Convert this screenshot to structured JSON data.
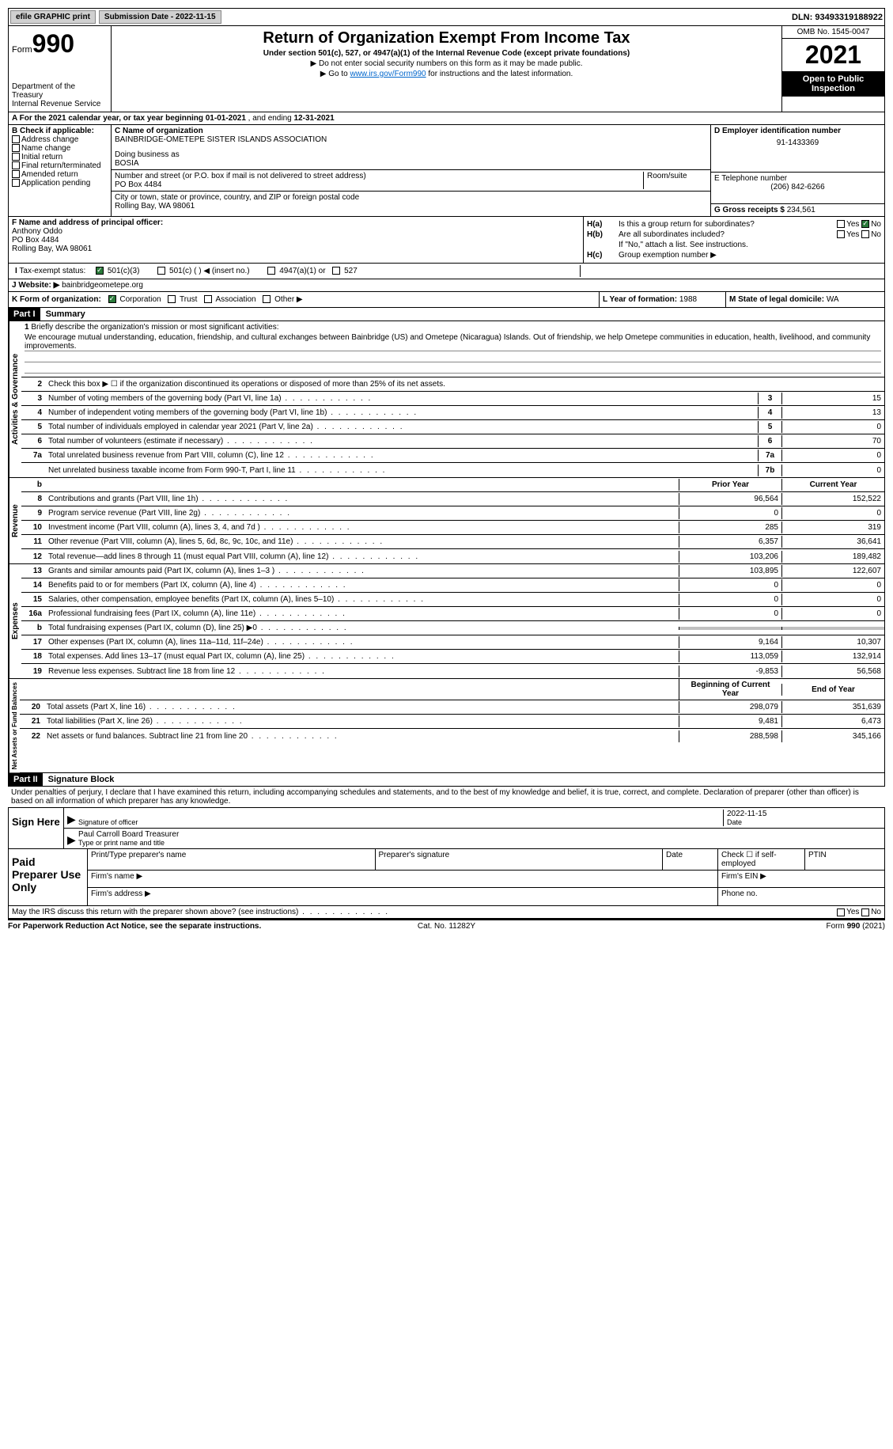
{
  "topbar": {
    "efile": "efile GRAPHIC print",
    "submission_label": "Submission Date - ",
    "submission_date": "2022-11-15",
    "dln_label": "DLN: ",
    "dln": "93493319188922"
  },
  "header": {
    "form_label": "Form",
    "form_number": "990",
    "dept": "Department of the Treasury\nInternal Revenue Service",
    "title": "Return of Organization Exempt From Income Tax",
    "subtitle": "Under section 501(c), 527, or 4947(a)(1) of the Internal Revenue Code (except private foundations)",
    "note1": "▶ Do not enter social security numbers on this form as it may be made public.",
    "note2_pre": "▶ Go to ",
    "note2_link": "www.irs.gov/Form990",
    "note2_post": " for instructions and the latest information.",
    "omb": "OMB No. 1545-0047",
    "year": "2021",
    "inspect": "Open to Public Inspection"
  },
  "row_a": {
    "text": "A For the 2021 calendar year, or tax year beginning ",
    "begin": "01-01-2021",
    "mid": "  , and ending ",
    "end": "12-31-2021"
  },
  "col_b": {
    "label": "B Check if applicable:",
    "items": [
      "Address change",
      "Name change",
      "Initial return",
      "Final return/terminated",
      "Amended return",
      "Application pending"
    ]
  },
  "col_c": {
    "name_label": "C Name of organization",
    "name": "BAINBRIDGE-OMETEPE SISTER ISLANDS ASSOCIATION",
    "dba_label": "Doing business as",
    "dba": "BOSIA",
    "addr_label": "Number and street (or P.O. box if mail is not delivered to street address)",
    "addr": "PO Box 4484",
    "room_label": "Room/suite",
    "city_label": "City or town, state or province, country, and ZIP or foreign postal code",
    "city": "Rolling Bay, WA  98061"
  },
  "col_d": {
    "ein_label": "D Employer identification number",
    "ein": "91-1433369",
    "phone_label": "E Telephone number",
    "phone": "(206) 842-6266",
    "gross_label": "G Gross receipts $ ",
    "gross": "234,561"
  },
  "col_f": {
    "label": "F Name and address of principal officer:",
    "name": "Anthony Oddo",
    "addr1": "PO Box 4484",
    "addr2": "Rolling Bay, WA  98061"
  },
  "col_h": {
    "ha_label": "H(a)",
    "ha_text": "Is this a group return for subordinates?",
    "hb_label": "H(b)",
    "hb_text": "Are all subordinates included?",
    "hb_note": "If \"No,\" attach a list. See instructions.",
    "hc_label": "H(c)",
    "hc_text": "Group exemption number ▶",
    "yes": "Yes",
    "no": "No"
  },
  "row_i": {
    "label": "I",
    "text": "Tax-exempt status:",
    "opts": [
      "501(c)(3)",
      "501(c) (  ) ◀ (insert no.)",
      "4947(a)(1) or",
      "527"
    ]
  },
  "row_j": {
    "label": "J",
    "text": "Website: ▶",
    "value": "bainbridgeometepe.org"
  },
  "row_k": {
    "label": "K Form of organization:",
    "opts": [
      "Corporation",
      "Trust",
      "Association",
      "Other ▶"
    ],
    "l_label": "L Year of formation: ",
    "l_value": "1988",
    "m_label": "M State of legal domicile: ",
    "m_value": "WA"
  },
  "part1": {
    "header": "Part I",
    "title": "Summary",
    "tab_activities": "Activities & Governance",
    "tab_revenue": "Revenue",
    "tab_expenses": "Expenses",
    "tab_netassets": "Net Assets or Fund Balances",
    "q1_label": "1",
    "q1_text": "Briefly describe the organization's mission or most significant activities:",
    "q1_mission": "We encourage mutual understanding, education, friendship, and cultural exchanges between Bainbridge (US) and Ometepe (Nicaragua) Islands. Out of friendship, we help Ometepe communities in education, health, livelihood, and community improvements.",
    "q2_label": "2",
    "q2_text": "Check this box ▶ ☐ if the organization discontinued its operations or disposed of more than 25% of its net assets.",
    "prior_year": "Prior Year",
    "current_year": "Current Year",
    "begin_year": "Beginning of Current Year",
    "end_year": "End of Year",
    "rows_gov": [
      {
        "n": "3",
        "t": "Number of voting members of the governing body (Part VI, line 1a)",
        "box": "3",
        "v": "15"
      },
      {
        "n": "4",
        "t": "Number of independent voting members of the governing body (Part VI, line 1b)",
        "box": "4",
        "v": "13"
      },
      {
        "n": "5",
        "t": "Total number of individuals employed in calendar year 2021 (Part V, line 2a)",
        "box": "5",
        "v": "0"
      },
      {
        "n": "6",
        "t": "Total number of volunteers (estimate if necessary)",
        "box": "6",
        "v": "70"
      },
      {
        "n": "7a",
        "t": "Total unrelated business revenue from Part VIII, column (C), line 12",
        "box": "7a",
        "v": "0"
      },
      {
        "n": "",
        "t": "Net unrelated business taxable income from Form 990-T, Part I, line 11",
        "box": "7b",
        "v": "0"
      }
    ],
    "b_label": "b",
    "rows_rev": [
      {
        "n": "8",
        "t": "Contributions and grants (Part VIII, line 1h)",
        "py": "96,564",
        "cy": "152,522"
      },
      {
        "n": "9",
        "t": "Program service revenue (Part VIII, line 2g)",
        "py": "0",
        "cy": "0"
      },
      {
        "n": "10",
        "t": "Investment income (Part VIII, column (A), lines 3, 4, and 7d )",
        "py": "285",
        "cy": "319"
      },
      {
        "n": "11",
        "t": "Other revenue (Part VIII, column (A), lines 5, 6d, 8c, 9c, 10c, and 11e)",
        "py": "6,357",
        "cy": "36,641"
      },
      {
        "n": "12",
        "t": "Total revenue—add lines 8 through 11 (must equal Part VIII, column (A), line 12)",
        "py": "103,206",
        "cy": "189,482"
      }
    ],
    "rows_exp": [
      {
        "n": "13",
        "t": "Grants and similar amounts paid (Part IX, column (A), lines 1–3 )",
        "py": "103,895",
        "cy": "122,607"
      },
      {
        "n": "14",
        "t": "Benefits paid to or for members (Part IX, column (A), line 4)",
        "py": "0",
        "cy": "0"
      },
      {
        "n": "15",
        "t": "Salaries, other compensation, employee benefits (Part IX, column (A), lines 5–10)",
        "py": "0",
        "cy": "0"
      },
      {
        "n": "16a",
        "t": "Professional fundraising fees (Part IX, column (A), line 11e)",
        "py": "0",
        "cy": "0"
      },
      {
        "n": "b",
        "t": "Total fundraising expenses (Part IX, column (D), line 25) ▶0",
        "py": "",
        "cy": "",
        "shaded": true
      },
      {
        "n": "17",
        "t": "Other expenses (Part IX, column (A), lines 11a–11d, 11f–24e)",
        "py": "9,164",
        "cy": "10,307"
      },
      {
        "n": "18",
        "t": "Total expenses. Add lines 13–17 (must equal Part IX, column (A), line 25)",
        "py": "113,059",
        "cy": "132,914"
      },
      {
        "n": "19",
        "t": "Revenue less expenses. Subtract line 18 from line 12",
        "py": "-9,853",
        "cy": "56,568"
      }
    ],
    "rows_net": [
      {
        "n": "20",
        "t": "Total assets (Part X, line 16)",
        "py": "298,079",
        "cy": "351,639"
      },
      {
        "n": "21",
        "t": "Total liabilities (Part X, line 26)",
        "py": "9,481",
        "cy": "6,473"
      },
      {
        "n": "22",
        "t": "Net assets or fund balances. Subtract line 21 from line 20",
        "py": "288,598",
        "cy": "345,166"
      }
    ]
  },
  "part2": {
    "header": "Part II",
    "title": "Signature Block",
    "declaration": "Under penalties of perjury, I declare that I have examined this return, including accompanying schedules and statements, and to the best of my knowledge and belief, it is true, correct, and complete. Declaration of preparer (other than officer) is based on all information of which preparer has any knowledge.",
    "sign_here": "Sign Here",
    "sig_officer": "Signature of officer",
    "sig_date_label": "Date",
    "sig_date": "2022-11-15",
    "sig_name": "Paul Carroll Board Treasurer",
    "sig_name_label": "Type or print name and title",
    "paid_prep": "Paid Preparer Use Only",
    "prep_name": "Print/Type preparer's name",
    "prep_sig": "Preparer's signature",
    "prep_date": "Date",
    "prep_check": "Check ☐ if self-employed",
    "prep_ptin": "PTIN",
    "firm_name": "Firm's name  ▶",
    "firm_ein": "Firm's EIN ▶",
    "firm_addr": "Firm's address ▶",
    "firm_phone": "Phone no.",
    "discuss": "May the IRS discuss this return with the preparer shown above? (see instructions)",
    "yes": "Yes",
    "no": "No"
  },
  "footer": {
    "left": "For Paperwork Reduction Act Notice, see the separate instructions.",
    "mid": "Cat. No. 11282Y",
    "right": "Form 990 (2021)"
  }
}
